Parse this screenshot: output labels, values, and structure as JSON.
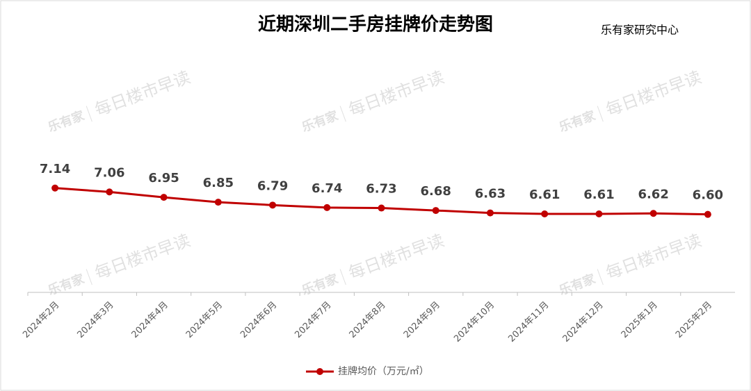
{
  "chart_data": {
    "type": "line",
    "title": "近期深圳二手房挂牌价走势图",
    "source": "乐有家研究中心",
    "watermark_brand": "乐有家",
    "watermark": "每日楼市早读",
    "categories": [
      "2024年2月",
      "2024年3月",
      "2024年4月",
      "2024年5月",
      "2024年6月",
      "2024年7月",
      "2024年8月",
      "2024年9月",
      "2024年10月",
      "2024年11月",
      "2024年12月",
      "2025年1月",
      "2025年2月"
    ],
    "series": [
      {
        "name": "挂牌均价（万元/㎡）",
        "color": "#c00000",
        "values": [
          7.14,
          7.06,
          6.95,
          6.85,
          6.79,
          6.74,
          6.73,
          6.68,
          6.63,
          6.61,
          6.61,
          6.62,
          6.6
        ],
        "value_labels": [
          "7.14",
          "7.06",
          "6.95",
          "6.85",
          "6.79",
          "6.74",
          "6.73",
          "6.68",
          "6.63",
          "6.61",
          "6.61",
          "6.62",
          "6.60"
        ]
      }
    ],
    "ylim": [
      5,
      10
    ],
    "legend": "bottom"
  }
}
